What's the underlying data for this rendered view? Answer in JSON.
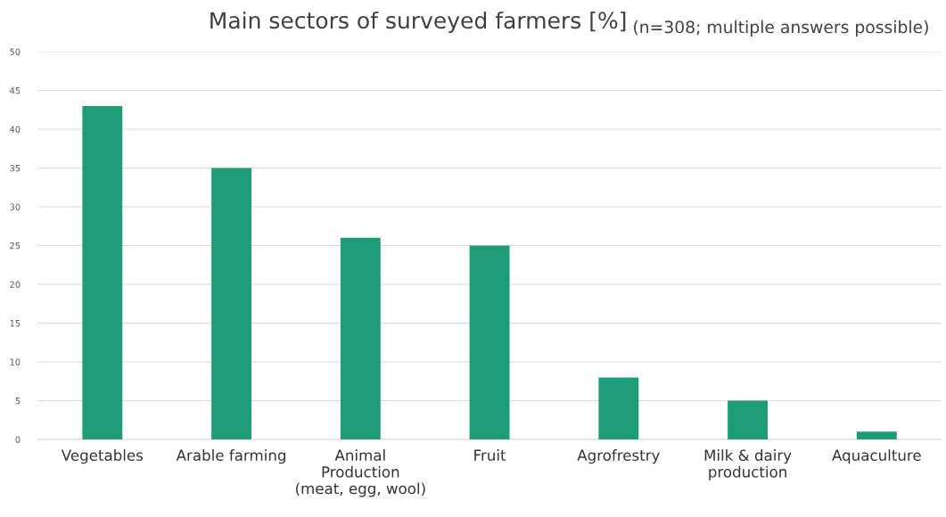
{
  "chart_data": {
    "type": "bar",
    "title": "Main sectors of surveyed farmers [%]",
    "subtitle": "(n=308; multiple answers possible)",
    "categories": [
      "Vegetables",
      "Arable farming",
      "Animal\nProduction\n(meat, egg, wool)",
      "Fruit",
      "Agrofrestry",
      "Milk & dairy\nproduction",
      "Aquaculture"
    ],
    "values": [
      43,
      35,
      26,
      25,
      8,
      5,
      1
    ],
    "color": "#1e9b77",
    "ylim": [
      0,
      50
    ],
    "yticks": [
      0,
      5,
      10,
      15,
      20,
      25,
      30,
      35,
      40,
      45,
      50
    ],
    "grid": "y",
    "legend": false
  }
}
